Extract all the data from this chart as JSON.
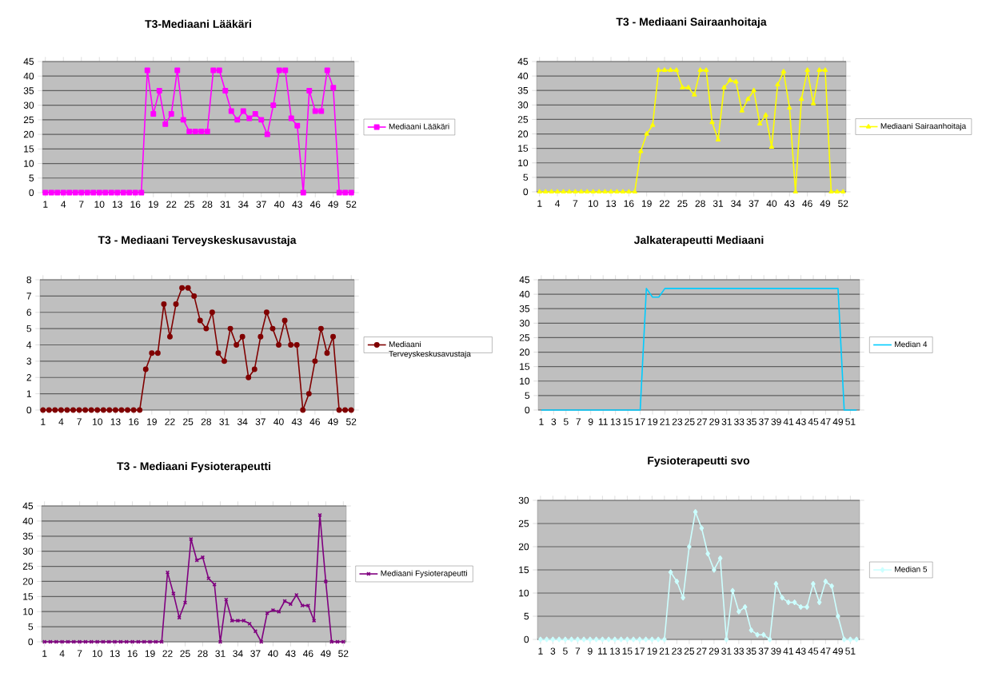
{
  "chart_data": [
    {
      "type": "line",
      "title": "T3-Mediaani Lääkäri",
      "categories": [
        "1",
        null,
        null,
        "4",
        null,
        null,
        "7",
        null,
        null,
        "10",
        null,
        null,
        "13",
        null,
        null,
        "16",
        null,
        null,
        "19",
        null,
        null,
        "22",
        null,
        null,
        "25",
        null,
        null,
        "28",
        null,
        null,
        "31",
        null,
        null,
        "34",
        null,
        null,
        "37",
        null,
        null,
        "40",
        null,
        null,
        "43",
        null,
        null,
        "46",
        null,
        null,
        "49",
        null,
        null,
        "52"
      ],
      "ylim": [
        0,
        45
      ],
      "yticks": [
        0,
        5,
        10,
        15,
        20,
        25,
        30,
        35,
        40,
        45
      ],
      "grid": "y",
      "legend": "right",
      "marker": "square",
      "series": [
        {
          "name": "Mediaani Lääkäri",
          "color": "#ff00ff",
          "values": [
            0,
            0,
            0,
            0,
            0,
            0,
            0,
            0,
            0,
            0,
            0,
            0,
            0,
            0,
            0,
            0,
            0,
            42,
            27,
            35,
            23.5,
            27,
            42,
            25,
            21,
            21,
            21,
            21,
            42,
            42,
            35,
            28,
            25,
            28,
            25.5,
            27,
            25,
            20,
            30,
            42,
            42,
            25.5,
            23,
            0,
            35,
            28,
            28,
            42,
            36,
            0,
            0,
            0
          ]
        }
      ]
    },
    {
      "type": "line",
      "title": "T3 - Mediaani Sairaanhoitaja",
      "categories": [
        "1",
        null,
        null,
        "4",
        null,
        null,
        "7",
        null,
        null,
        "10",
        null,
        null,
        "13",
        null,
        null,
        "16",
        null,
        null,
        "19",
        null,
        null,
        "22",
        null,
        null,
        "25",
        null,
        null,
        "28",
        null,
        null,
        "31",
        null,
        null,
        "34",
        null,
        null,
        "37",
        null,
        null,
        "40",
        null,
        null,
        "43",
        null,
        null,
        "46",
        null,
        null,
        "49",
        null,
        null,
        "52"
      ],
      "ylim": [
        0,
        45
      ],
      "yticks": [
        0,
        5,
        10,
        15,
        20,
        25,
        30,
        35,
        40,
        45
      ],
      "grid": "y",
      "legend": "right",
      "marker": "triangle",
      "series": [
        {
          "name": "Mediaani Sairaanhoitaja",
          "color": "#ffff00",
          "values": [
            0,
            0,
            0,
            0,
            0,
            0,
            0,
            0,
            0,
            0,
            0,
            0,
            0,
            0,
            0,
            0,
            0,
            14,
            20,
            23,
            42,
            42,
            42,
            42,
            36,
            36,
            33.5,
            42,
            42,
            24,
            18,
            36,
            38.5,
            38,
            28,
            32,
            35,
            23.5,
            26.5,
            15.5,
            37,
            41.5,
            29,
            0,
            32,
            42,
            30.5,
            42,
            42,
            0,
            0,
            0
          ]
        }
      ]
    },
    {
      "type": "line",
      "title": "T3 - Mediaani Terveyskeskusavustaja",
      "categories": [
        "1",
        null,
        null,
        "4",
        null,
        null,
        "7",
        null,
        null,
        "10",
        null,
        null,
        "13",
        null,
        null,
        "16",
        null,
        null,
        "19",
        null,
        null,
        "22",
        null,
        null,
        "25",
        null,
        null,
        "28",
        null,
        null,
        "31",
        null,
        null,
        "34",
        null,
        null,
        "37",
        null,
        null,
        "40",
        null,
        null,
        "43",
        null,
        null,
        "46",
        null,
        null,
        "49",
        null,
        null,
        "52"
      ],
      "ylim": [
        0,
        8
      ],
      "yticks": [
        0,
        1,
        2,
        3,
        4,
        5,
        6,
        7,
        8
      ],
      "grid": "y",
      "legend": "right",
      "marker": "circle",
      "series": [
        {
          "name": "Mediaani Terveyskeskusavustaja",
          "color": "#800000",
          "values": [
            0,
            0,
            0,
            0,
            0,
            0,
            0,
            0,
            0,
            0,
            0,
            0,
            0,
            0,
            0,
            0,
            0,
            2.5,
            3.5,
            3.5,
            6.5,
            4.5,
            6.5,
            7.5,
            7.5,
            7,
            5.5,
            5,
            6,
            3.5,
            3,
            5,
            4,
            4.5,
            2,
            2.5,
            4.5,
            6,
            5,
            4,
            5.5,
            4,
            4,
            0,
            1,
            3,
            5,
            3.5,
            4.5,
            0,
            0,
            0
          ]
        }
      ]
    },
    {
      "type": "line",
      "title": "Jalkaterapeutti Mediaani",
      "categories": [
        "1",
        null,
        "3",
        null,
        "5",
        null,
        "7",
        null,
        "9",
        null,
        "11",
        null,
        "13",
        null,
        "15",
        null,
        "17",
        null,
        "19",
        null,
        "21",
        null,
        "23",
        null,
        "25",
        null,
        "27",
        null,
        "29",
        null,
        "31",
        null,
        "33",
        null,
        "35",
        null,
        "37",
        null,
        "39",
        null,
        "41",
        null,
        "43",
        null,
        "45",
        null,
        "47",
        null,
        "49",
        null,
        "51",
        null
      ],
      "ylim": [
        0,
        45
      ],
      "yticks": [
        0,
        5,
        10,
        15,
        20,
        25,
        30,
        35,
        40,
        45
      ],
      "grid": "y",
      "legend": "right",
      "marker": "none",
      "series": [
        {
          "name": "Median 4",
          "color": "#00ccff",
          "values": [
            0,
            0,
            0,
            0,
            0,
            0,
            0,
            0,
            0,
            0,
            0,
            0,
            0,
            0,
            0,
            0,
            0,
            42,
            39,
            39,
            42,
            42,
            42,
            42,
            42,
            42,
            42,
            42,
            42,
            42,
            42,
            42,
            42,
            42,
            42,
            42,
            42,
            42,
            42,
            42,
            42,
            42,
            42,
            42,
            42,
            42,
            42,
            42,
            42,
            0,
            0,
            0
          ]
        }
      ]
    },
    {
      "type": "line",
      "title": "T3 - Mediaani Fysioterapeutti",
      "categories": [
        "1",
        null,
        null,
        "4",
        null,
        null,
        "7",
        null,
        null,
        "10",
        null,
        null,
        "13",
        null,
        null,
        "16",
        null,
        null,
        "19",
        null,
        null,
        "22",
        null,
        null,
        "25",
        null,
        null,
        "28",
        null,
        null,
        "31",
        null,
        null,
        "34",
        null,
        null,
        "37",
        null,
        null,
        "40",
        null,
        null,
        "43",
        null,
        null,
        "46",
        null,
        null,
        "49",
        null,
        null,
        "52"
      ],
      "ylim": [
        0,
        45
      ],
      "yticks": [
        0,
        5,
        10,
        15,
        20,
        25,
        30,
        35,
        40,
        45
      ],
      "grid": "y",
      "legend": "right",
      "marker": "cross",
      "series": [
        {
          "name": "Mediaani Fysioterapeutti",
          "color": "#800080",
          "values": [
            0,
            0,
            0,
            0,
            0,
            0,
            0,
            0,
            0,
            0,
            0,
            0,
            0,
            0,
            0,
            0,
            0,
            0,
            0,
            0,
            0,
            23,
            16,
            8,
            13,
            34,
            27,
            28,
            21,
            19,
            0,
            14,
            7,
            7,
            7,
            6,
            3.5,
            0,
            9.5,
            10.5,
            10,
            13.5,
            12.5,
            15.5,
            12,
            12,
            7,
            42,
            20,
            0,
            0,
            0
          ]
        }
      ]
    },
    {
      "type": "line",
      "title": "Fysioterapeutti svo",
      "categories": [
        "1",
        null,
        "3",
        null,
        "5",
        null,
        "7",
        null,
        "9",
        null,
        "11",
        null,
        "13",
        null,
        "15",
        null,
        "17",
        null,
        "19",
        null,
        "21",
        null,
        "23",
        null,
        "25",
        null,
        "27",
        null,
        "29",
        null,
        "31",
        null,
        "33",
        null,
        "35",
        null,
        "37",
        null,
        "39",
        null,
        "41",
        null,
        "43",
        null,
        "45",
        null,
        "47",
        null,
        "49",
        null,
        "51",
        null
      ],
      "ylim": [
        0,
        30
      ],
      "yticks": [
        0,
        5,
        10,
        15,
        20,
        25,
        30
      ],
      "grid": "y",
      "legend": "right",
      "marker": "diamond",
      "series": [
        {
          "name": "Median 5",
          "color": "#ccffff",
          "values": [
            0,
            0,
            0,
            0,
            0,
            0,
            0,
            0,
            0,
            0,
            0,
            0,
            0,
            0,
            0,
            0,
            0,
            0,
            0,
            0,
            0,
            14.5,
            12.5,
            9,
            20,
            27.5,
            24,
            18.5,
            15,
            17.5,
            0,
            10.5,
            6,
            7,
            2,
            1,
            1,
            0,
            12,
            9,
            8,
            8,
            7,
            7,
            12,
            8,
            12.5,
            11.5,
            5,
            0,
            0,
            0
          ]
        }
      ]
    }
  ]
}
